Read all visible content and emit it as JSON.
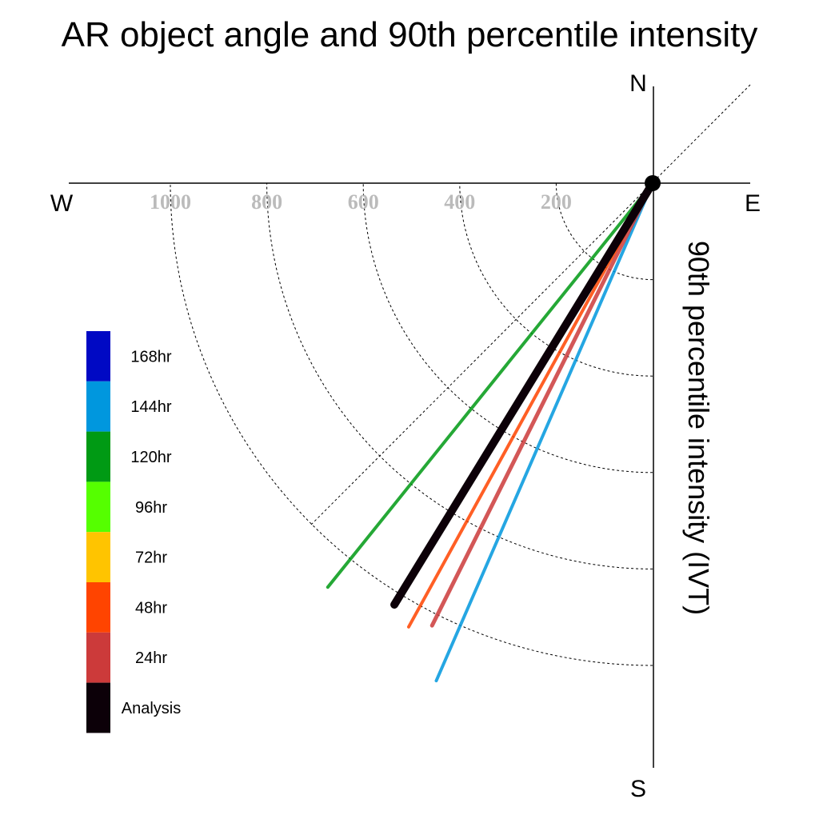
{
  "chart_data": {
    "type": "polar-vector",
    "title": "AR object angle and 90th percentile intensity",
    "ylabel": "90th percentile intensity (IVT)",
    "directions": {
      "north": "N",
      "south": "S",
      "east": "E",
      "west": "W"
    },
    "radial_ticks": [
      "200",
      "400",
      "600",
      "800",
      "1000"
    ],
    "radial_tick_values": [
      200,
      400,
      600,
      800,
      1000
    ],
    "rmax": 1200,
    "angle_convention": "degrees clockwise from north",
    "legend_placement": "left",
    "series": [
      {
        "name": "Analysis",
        "color": "#0c0008",
        "angle": 211.5,
        "magnitude": 1025,
        "width": 10
      },
      {
        "name": "24hr",
        "color": "#cc3a3a",
        "angle": 206.5,
        "magnitude": 1025,
        "width": 5
      },
      {
        "name": "48hr",
        "color": "#ff4400",
        "angle": 208.8,
        "magnitude": 1050,
        "width": 4
      },
      {
        "name": "72hr",
        "color": "#ffc400",
        "angle": null,
        "magnitude": null,
        "width": 4
      },
      {
        "name": "96hr",
        "color": "#55ff00",
        "angle": null,
        "magnitude": null,
        "width": 4
      },
      {
        "name": "120hr",
        "color": "#009a14",
        "angle": 218.8,
        "magnitude": 1075,
        "width": 4
      },
      {
        "name": "144hr",
        "color": "#0097de",
        "angle": 203.5,
        "magnitude": 1125,
        "width": 4
      },
      {
        "name": "168hr",
        "color": "#0009c4",
        "angle": null,
        "magnitude": null,
        "width": 4
      }
    ],
    "legend_order": [
      "168hr",
      "144hr",
      "120hr",
      "96hr",
      "72hr",
      "48hr",
      "24hr",
      "Analysis"
    ],
    "draw_order": [
      "144hr",
      "24hr",
      "48hr",
      "120hr",
      "Analysis"
    ]
  }
}
